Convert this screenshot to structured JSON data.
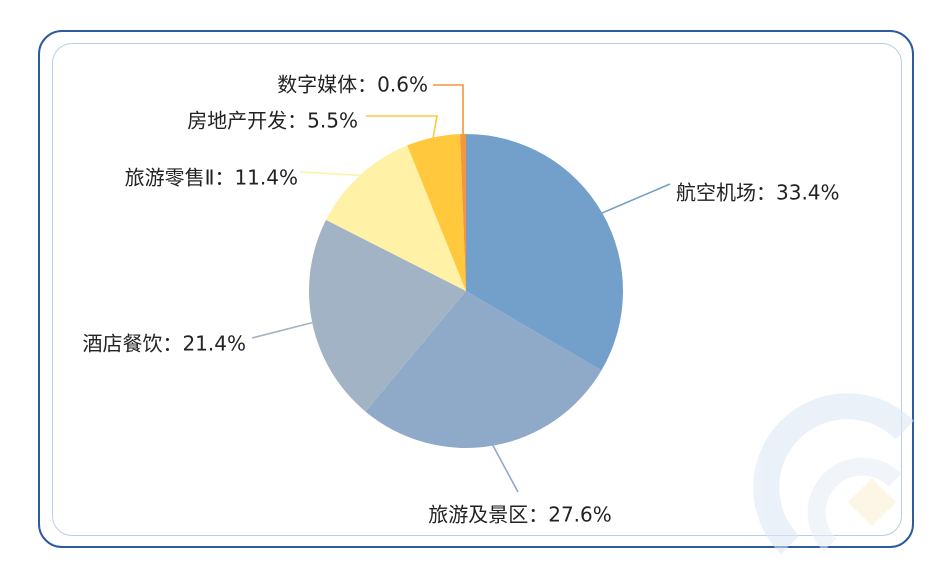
{
  "chart_data": {
    "type": "pie",
    "slices": [
      {
        "label": "航空机场：33.4%",
        "value": 33.4,
        "color": "#739FCB"
      },
      {
        "label": "旅游及景区：27.6%",
        "value": 27.6,
        "color": "#8FA9C8"
      },
      {
        "label": "酒店餐饮：21.4%",
        "value": 21.4,
        "color": "#A3B3C6"
      },
      {
        "label": "旅游零售Ⅱ：11.4%",
        "value": 11.4,
        "color": "#FFF1A6"
      },
      {
        "label": "房地产开发：5.5%",
        "value": 5.5,
        "color": "#FFC83D"
      },
      {
        "label": "数字媒体：0.6%",
        "value": 0.6,
        "color": "#F5973A"
      }
    ],
    "legend": "none"
  }
}
